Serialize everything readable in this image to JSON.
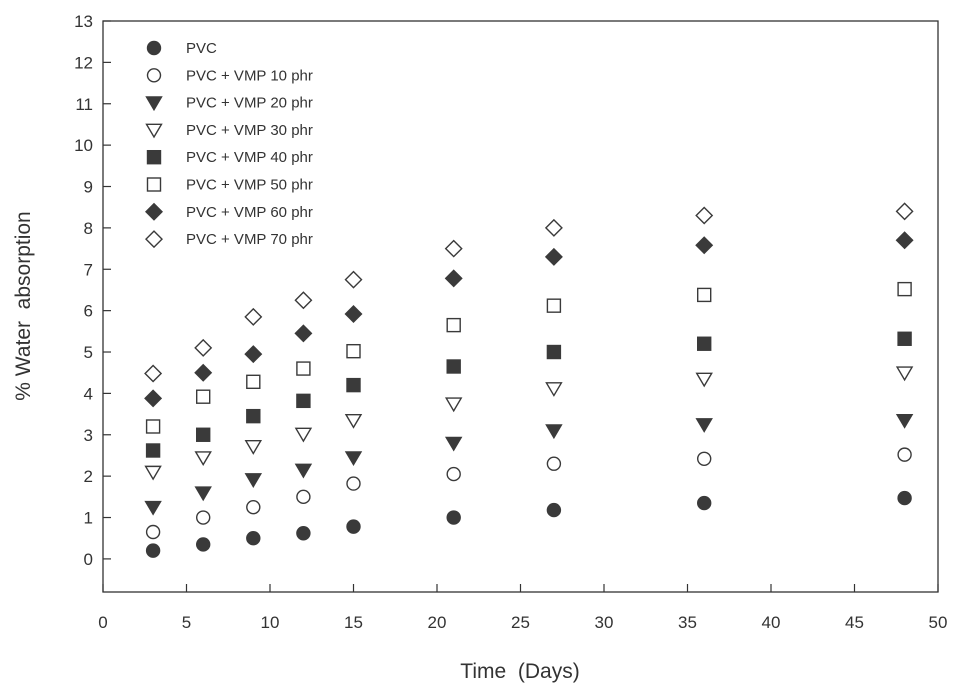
{
  "chart_data": {
    "type": "scatter",
    "title": "",
    "xlabel": "Time  (Days)",
    "ylabel": "% Water  absorption",
    "xlim": [
      0,
      50
    ],
    "ylim": [
      -0.8,
      13
    ],
    "xticks": [
      0,
      5,
      10,
      15,
      20,
      25,
      30,
      35,
      40,
      45,
      50
    ],
    "yticks": [
      0,
      1,
      2,
      3,
      4,
      5,
      6,
      7,
      8,
      9,
      10,
      11,
      12,
      13
    ],
    "grid": false,
    "legend_position": "top-left",
    "x": [
      3,
      6,
      9,
      12,
      15,
      21,
      27,
      36,
      48
    ],
    "series": [
      {
        "name": "PVC",
        "marker": "filled-circle",
        "color": "#3a3a3a",
        "values": [
          0.2,
          0.35,
          0.5,
          0.62,
          0.78,
          1.0,
          1.18,
          1.35,
          1.47
        ]
      },
      {
        "name": "PVC + VMP  10  phr",
        "marker": "open-circle",
        "color": "#3a3a3a",
        "values": [
          0.65,
          1.0,
          1.25,
          1.5,
          1.82,
          2.05,
          2.3,
          2.42,
          2.52
        ]
      },
      {
        "name": "PVC + VMP  20  phr",
        "marker": "filled-triangle-down",
        "color": "#3a3a3a",
        "values": [
          1.25,
          1.6,
          1.92,
          2.15,
          2.45,
          2.8,
          3.1,
          3.25,
          3.35
        ]
      },
      {
        "name": "PVC + VMP  30  phr",
        "marker": "open-triangle-down",
        "color": "#3a3a3a",
        "values": [
          2.1,
          2.45,
          2.72,
          3.02,
          3.35,
          3.75,
          4.12,
          4.35,
          4.5
        ]
      },
      {
        "name": "PVC + VMP  40  phr",
        "marker": "filled-square",
        "color": "#3a3a3a",
        "values": [
          2.62,
          3.0,
          3.45,
          3.82,
          4.2,
          4.65,
          5.0,
          5.2,
          5.32
        ]
      },
      {
        "name": "PVC + VMP  50  phr",
        "marker": "open-square",
        "color": "#3a3a3a",
        "values": [
          3.2,
          3.92,
          4.28,
          4.6,
          5.02,
          5.65,
          6.12,
          6.38,
          6.52
        ]
      },
      {
        "name": "PVC + VMP  60  phr",
        "marker": "filled-diamond",
        "color": "#3a3a3a",
        "values": [
          3.88,
          4.5,
          4.95,
          5.45,
          5.92,
          6.78,
          7.3,
          7.58,
          7.7
        ]
      },
      {
        "name": "PVC + VMP  70  phr",
        "marker": "open-diamond",
        "color": "#3a3a3a",
        "values": [
          4.48,
          5.1,
          5.85,
          6.25,
          6.75,
          7.5,
          8.0,
          8.3,
          8.4
        ]
      }
    ]
  }
}
